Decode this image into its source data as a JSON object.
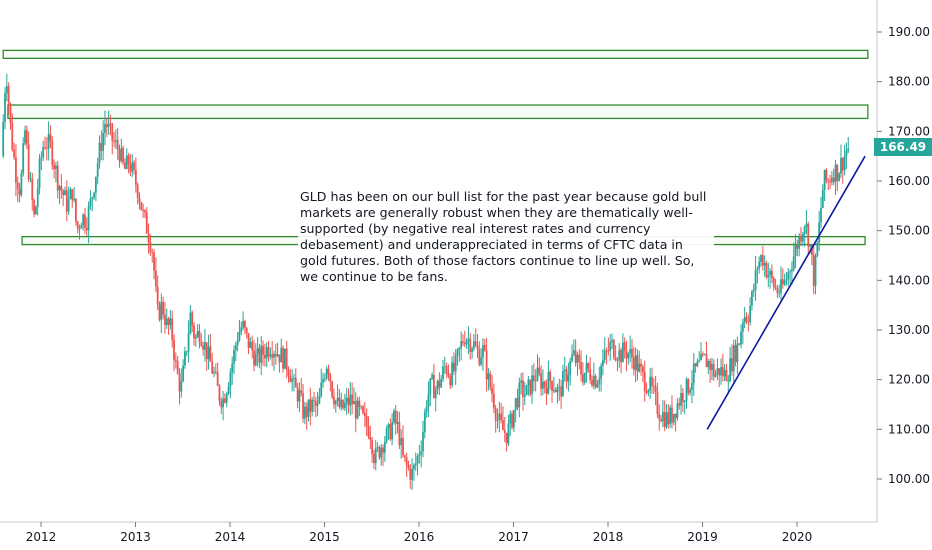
{
  "chart_data": {
    "type": "candlestick",
    "ticker_note": "GLD has been on our bull list for the past year because gold bull markets are generally robust when they are thematically well-supported (by negative real interest rates and currency debasement) and underappreciated in terms of CFTC data in gold futures. Both of those factors continue to line up well. So, we continue to be fans.",
    "last_price": "166.49",
    "y_ticks": [
      "100.00",
      "110.00",
      "120.00",
      "130.00",
      "140.00",
      "150.00",
      "160.00",
      "170.00",
      "180.00",
      "190.00"
    ],
    "x_ticks": [
      "2012",
      "2013",
      "2014",
      "2015",
      "2016",
      "2017",
      "2018",
      "2019",
      "2020"
    ],
    "ylim": [
      92,
      193
    ],
    "xlim": [
      2011.6,
      2020.85
    ],
    "colors": {
      "up": "#26a69a",
      "down": "#ef5350",
      "zone": "#2e8b2e",
      "trend": "#0d1a9e",
      "axis": "#131722"
    },
    "zones": [
      {
        "x0": 2011.6,
        "x1": 2020.75,
        "y0": 184.7,
        "y1": 186.3
      },
      {
        "x0": 2011.65,
        "x1": 2020.75,
        "y0": 172.6,
        "y1": 175.3
      },
      {
        "x0": 2011.8,
        "x1": 2020.72,
        "y0": 147.2,
        "y1": 148.8
      }
    ],
    "trendline": {
      "x0": 2019.05,
      "y0": 110,
      "x1": 2020.72,
      "y1": 165
    },
    "price_path": [
      [
        2011.6,
        165
      ],
      [
        2011.65,
        183
      ],
      [
        2011.7,
        170
      ],
      [
        2011.75,
        162
      ],
      [
        2011.8,
        158
      ],
      [
        2011.85,
        170
      ],
      [
        2011.9,
        160
      ],
      [
        2011.95,
        152
      ],
      [
        2012.0,
        162
      ],
      [
        2012.05,
        168
      ],
      [
        2012.12,
        167
      ],
      [
        2012.2,
        160
      ],
      [
        2012.3,
        155
      ],
      [
        2012.35,
        158
      ],
      [
        2012.4,
        150
      ],
      [
        2012.45,
        153
      ],
      [
        2012.5,
        152
      ],
      [
        2012.55,
        156
      ],
      [
        2012.62,
        164
      ],
      [
        2012.7,
        172
      ],
      [
        2012.78,
        168
      ],
      [
        2012.85,
        166
      ],
      [
        2012.9,
        162
      ],
      [
        2012.95,
        164
      ],
      [
        2013.0,
        161
      ],
      [
        2013.05,
        158
      ],
      [
        2013.1,
        153
      ],
      [
        2013.15,
        150
      ],
      [
        2013.2,
        146
      ],
      [
        2013.25,
        133
      ],
      [
        2013.3,
        135
      ],
      [
        2013.35,
        131
      ],
      [
        2013.4,
        130
      ],
      [
        2013.45,
        122
      ],
      [
        2013.5,
        118
      ],
      [
        2013.55,
        125
      ],
      [
        2013.6,
        133
      ],
      [
        2013.65,
        128
      ],
      [
        2013.7,
        130
      ],
      [
        2013.75,
        127
      ],
      [
        2013.8,
        124
      ],
      [
        2013.85,
        121
      ],
      [
        2013.9,
        117
      ],
      [
        2013.95,
        116
      ],
      [
        2014.0,
        120
      ],
      [
        2014.05,
        124
      ],
      [
        2014.1,
        129
      ],
      [
        2014.15,
        131
      ],
      [
        2014.2,
        128
      ],
      [
        2014.25,
        126
      ],
      [
        2014.3,
        124
      ],
      [
        2014.35,
        125
      ],
      [
        2014.4,
        126
      ],
      [
        2014.45,
        127
      ],
      [
        2014.5,
        126
      ],
      [
        2014.55,
        125
      ],
      [
        2014.6,
        124
      ],
      [
        2014.65,
        122
      ],
      [
        2014.7,
        118
      ],
      [
        2014.75,
        117
      ],
      [
        2014.8,
        113
      ],
      [
        2014.85,
        114
      ],
      [
        2014.9,
        115
      ],
      [
        2014.95,
        114
      ],
      [
        2015.0,
        120
      ],
      [
        2015.05,
        124
      ],
      [
        2015.1,
        118
      ],
      [
        2015.15,
        115
      ],
      [
        2015.2,
        114
      ],
      [
        2015.25,
        115
      ],
      [
        2015.3,
        116
      ],
      [
        2015.35,
        114
      ],
      [
        2015.4,
        113
      ],
      [
        2015.45,
        111
      ],
      [
        2015.5,
        110
      ],
      [
        2015.55,
        104
      ],
      [
        2015.6,
        106
      ],
      [
        2015.65,
        108
      ],
      [
        2015.7,
        109
      ],
      [
        2015.75,
        112
      ],
      [
        2015.8,
        110
      ],
      [
        2015.85,
        104
      ],
      [
        2015.9,
        102
      ],
      [
        2015.95,
        101
      ],
      [
        2016.0,
        104
      ],
      [
        2016.05,
        108
      ],
      [
        2016.1,
        116
      ],
      [
        2016.15,
        119
      ],
      [
        2016.2,
        118
      ],
      [
        2016.25,
        120
      ],
      [
        2016.3,
        123
      ],
      [
        2016.35,
        121
      ],
      [
        2016.4,
        122
      ],
      [
        2016.45,
        126
      ],
      [
        2016.5,
        129
      ],
      [
        2016.55,
        128
      ],
      [
        2016.6,
        127
      ],
      [
        2016.65,
        125
      ],
      [
        2016.7,
        126
      ],
      [
        2016.75,
        120
      ],
      [
        2016.8,
        117
      ],
      [
        2016.85,
        112
      ],
      [
        2016.9,
        110
      ],
      [
        2016.95,
        109
      ],
      [
        2017.0,
        112
      ],
      [
        2017.05,
        116
      ],
      [
        2017.1,
        118
      ],
      [
        2017.15,
        117
      ],
      [
        2017.2,
        119
      ],
      [
        2017.25,
        121
      ],
      [
        2017.3,
        120
      ],
      [
        2017.35,
        119
      ],
      [
        2017.4,
        120
      ],
      [
        2017.45,
        119
      ],
      [
        2017.5,
        117
      ],
      [
        2017.55,
        120
      ],
      [
        2017.6,
        122
      ],
      [
        2017.65,
        125
      ],
      [
        2017.7,
        123
      ],
      [
        2017.75,
        121
      ],
      [
        2017.8,
        122
      ],
      [
        2017.85,
        121
      ],
      [
        2017.9,
        120
      ],
      [
        2017.95,
        123
      ],
      [
        2018.0,
        125
      ],
      [
        2018.05,
        127
      ],
      [
        2018.1,
        126
      ],
      [
        2018.15,
        125
      ],
      [
        2018.2,
        126
      ],
      [
        2018.25,
        125
      ],
      [
        2018.3,
        124
      ],
      [
        2018.35,
        122
      ],
      [
        2018.4,
        120
      ],
      [
        2018.45,
        119
      ],
      [
        2018.5,
        117
      ],
      [
        2018.55,
        114
      ],
      [
        2018.6,
        113
      ],
      [
        2018.65,
        112
      ],
      [
        2018.7,
        113
      ],
      [
        2018.75,
        115
      ],
      [
        2018.8,
        117
      ],
      [
        2018.85,
        118
      ],
      [
        2018.9,
        120
      ],
      [
        2018.95,
        122
      ],
      [
        2019.0,
        123
      ],
      [
        2019.05,
        124
      ],
      [
        2019.1,
        123
      ],
      [
        2019.15,
        121
      ],
      [
        2019.2,
        122
      ],
      [
        2019.25,
        121
      ],
      [
        2019.3,
        122
      ],
      [
        2019.35,
        125
      ],
      [
        2019.4,
        127
      ],
      [
        2019.45,
        133
      ],
      [
        2019.5,
        133
      ],
      [
        2019.55,
        137
      ],
      [
        2019.6,
        143
      ],
      [
        2019.65,
        145
      ],
      [
        2019.7,
        142
      ],
      [
        2019.75,
        140
      ],
      [
        2019.8,
        138
      ],
      [
        2019.85,
        138
      ],
      [
        2019.9,
        140
      ],
      [
        2019.95,
        143
      ],
      [
        2020.0,
        146
      ],
      [
        2020.05,
        149
      ],
      [
        2020.1,
        152
      ],
      [
        2020.15,
        148
      ],
      [
        2020.2,
        140
      ],
      [
        2020.25,
        150
      ],
      [
        2020.3,
        160
      ],
      [
        2020.35,
        160
      ],
      [
        2020.4,
        162
      ],
      [
        2020.45,
        162
      ],
      [
        2020.5,
        164
      ],
      [
        2020.55,
        166.5
      ]
    ]
  }
}
